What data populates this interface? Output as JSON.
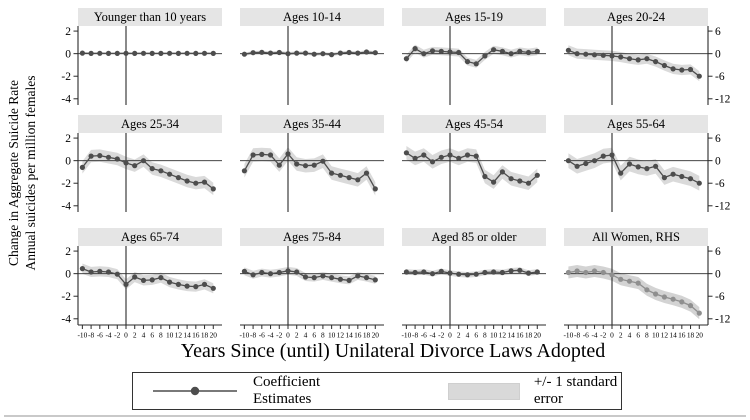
{
  "chart_data": {
    "type": "line",
    "error_band": true,
    "ylabel_line1": "Change in Aggregate Suicide Rate",
    "ylabel_line2": "Annual suicides per million females",
    "xlabel": "Years Since (until) Unilateral Divorce Laws Adopted",
    "legend": {
      "coefficient_label": "Coefficient Estimates",
      "se_label": "+/- 1 standard error",
      "position": "bottom"
    },
    "x": [
      -10,
      -8,
      -6,
      -4,
      -2,
      0,
      2,
      4,
      6,
      8,
      10,
      12,
      14,
      16,
      18,
      20
    ],
    "x_tick_labels": [
      "-10",
      "-8",
      "-6",
      "-4",
      "-2",
      "0",
      "2",
      "4",
      "6",
      "8",
      "10",
      "12",
      "14",
      "16",
      "18",
      "20"
    ],
    "left_axis_ticks": [
      2,
      0,
      -2,
      -4
    ],
    "right_axis_ticks": [
      6,
      0,
      -6,
      -12
    ],
    "xlim": [
      -11,
      22
    ],
    "ylim_left": [
      2.45,
      -4.55
    ],
    "ylim_right": [
      7.35,
      -13.65
    ],
    "grid": false,
    "colors": {
      "coef": "#4d4d4d",
      "coef_rhs": "#8f8f8f",
      "band": "#dadada",
      "band_rhs": "#d3d3d3",
      "title_bg": "#e5e5e5",
      "axis": "#2a2a2a"
    },
    "panels": [
      {
        "title": "Younger than 10 years",
        "axis": "left",
        "values": [
          0.05,
          0.02,
          0.03,
          0.02,
          0.02,
          0.03,
          0.02,
          0.03,
          0.02,
          0.02,
          0.03,
          0.02,
          0.03,
          0.02,
          0.03,
          0.02
        ],
        "se": 0.07
      },
      {
        "title": "Ages 10-14",
        "axis": "left",
        "values": [
          -0.05,
          0.08,
          0.12,
          0.05,
          0.1,
          0,
          0.05,
          0.05,
          -0.05,
          0,
          -0.08,
          0.05,
          0.1,
          0.05,
          0.15,
          0.08
        ],
        "se": 0.15
      },
      {
        "title": "Ages 15-19",
        "axis": "left",
        "values": [
          -0.45,
          0.45,
          0,
          0.25,
          0.2,
          0.15,
          0.1,
          -0.7,
          -0.9,
          -0.2,
          0.35,
          0.2,
          0,
          0.2,
          0.1,
          0.2
        ],
        "se": 0.35
      },
      {
        "title": "Ages 20-24",
        "axis": "left",
        "values": [
          0.3,
          0,
          -0.05,
          -0.1,
          -0.15,
          -0.2,
          -0.3,
          -0.45,
          -0.55,
          -0.45,
          -0.7,
          -1.05,
          -1.35,
          -1.45,
          -1.4,
          -2.0
        ],
        "se": 0.45
      },
      {
        "title": "Ages 25-34",
        "axis": "left",
        "values": [
          -0.6,
          0.4,
          0.45,
          0.3,
          0.15,
          -0.2,
          -0.45,
          0,
          -0.7,
          -0.9,
          -1.2,
          -1.5,
          -1.8,
          -2.0,
          -1.9,
          -2.5
        ],
        "se": 0.55
      },
      {
        "title": "Ages 35-44",
        "axis": "left",
        "values": [
          -0.9,
          0.5,
          0.55,
          0.5,
          -0.4,
          0.6,
          -0.3,
          -0.45,
          -0.4,
          -0.05,
          -1.1,
          -1.3,
          -1.5,
          -1.7,
          -1.1,
          -2.5
        ],
        "se": 0.6
      },
      {
        "title": "Ages 45-54",
        "axis": "left",
        "values": [
          0.7,
          0.2,
          0.5,
          -0.1,
          0.3,
          0.5,
          0.2,
          0.5,
          0.4,
          -1.4,
          -1.9,
          -1.0,
          -1.6,
          -1.8,
          -2.0,
          -1.3
        ],
        "se": 0.6
      },
      {
        "title": "Ages 55-64",
        "axis": "left",
        "values": [
          0,
          -0.5,
          -0.25,
          0,
          0.4,
          0.5,
          -1.1,
          -0.3,
          -0.55,
          -0.7,
          -0.5,
          -1.5,
          -1.2,
          -1.4,
          -1.6,
          -2.0
        ],
        "se": 0.65
      },
      {
        "title": "Ages 65-74",
        "axis": "left",
        "values": [
          0.45,
          0.15,
          0.2,
          0.15,
          -0.05,
          -0.95,
          -0.3,
          -0.6,
          -0.55,
          -0.35,
          -0.75,
          -0.95,
          -1.1,
          -1.15,
          -0.95,
          -1.3
        ],
        "se": 0.45
      },
      {
        "title": "Ages 75-84",
        "axis": "left",
        "values": [
          0.2,
          -0.1,
          0.1,
          0,
          0.1,
          0.25,
          0.15,
          -0.3,
          -0.35,
          -0.2,
          -0.35,
          -0.5,
          -0.6,
          -0.2,
          -0.35,
          -0.55
        ],
        "se": 0.35
      },
      {
        "title": "Aged 85 or older",
        "axis": "left",
        "values": [
          0.15,
          0.1,
          0.15,
          0,
          0.2,
          0.05,
          -0.05,
          -0.1,
          -0.05,
          0.1,
          0.15,
          0.1,
          0.25,
          0.3,
          0.05,
          0.15
        ],
        "se": 0.25
      },
      {
        "title": "All Women, RHS",
        "axis": "right",
        "values": [
          0.3,
          0.7,
          0.3,
          0.7,
          0.3,
          -0.3,
          -1.5,
          -2.0,
          -2.5,
          -4.3,
          -5.4,
          -6.2,
          -6.8,
          -7.5,
          -8.5,
          -10.5
        ],
        "se": 1.6
      }
    ]
  }
}
